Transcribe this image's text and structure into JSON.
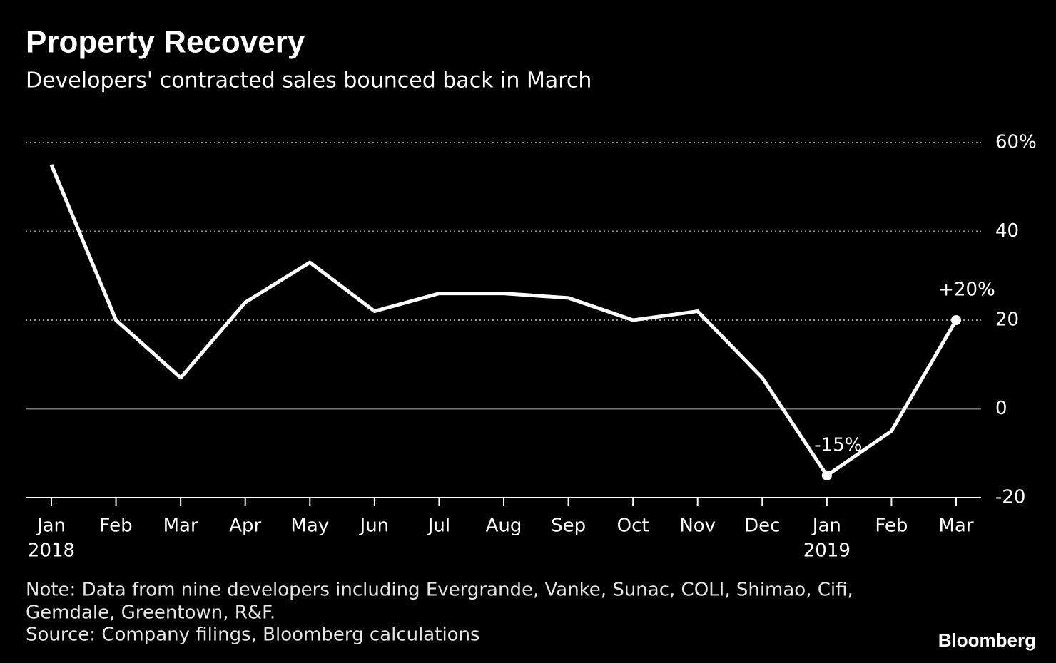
{
  "chart_data": {
    "type": "line",
    "title": "Property Recovery",
    "subtitle": "Developers' contracted sales bounced back in March",
    "categories": [
      "Jan",
      "Feb",
      "Mar",
      "Apr",
      "May",
      "Jun",
      "Jul",
      "Aug",
      "Sep",
      "Oct",
      "Nov",
      "Dec",
      "Jan",
      "Feb",
      "Mar"
    ],
    "category_years": [
      "2018",
      null,
      null,
      null,
      null,
      null,
      null,
      null,
      null,
      null,
      null,
      null,
      "2019",
      null,
      null
    ],
    "series": [
      {
        "color": "#ffffff",
        "values": [
          55,
          20,
          7,
          24,
          33,
          22,
          26,
          26,
          25,
          20,
          22,
          7,
          -15,
          -5,
          20
        ],
        "value_labels": [
          null,
          null,
          null,
          null,
          null,
          null,
          null,
          null,
          null,
          null,
          null,
          null,
          "-15%",
          null,
          "+20%"
        ]
      }
    ],
    "ylim": [
      -20,
      60
    ],
    "yticks": [
      -20,
      0,
      20,
      40,
      {
        "value": 60,
        "label": "60%"
      }
    ],
    "grid": true,
    "notes": [
      "Note: Data from nine developers including Evergrande, Vanke, Sunac, COLI, Shimao, Cifi,",
      "Gemdale, Greentown, R&F."
    ],
    "source": "Source: Company filings, Bloomberg calculations",
    "brand": "Bloomberg"
  }
}
